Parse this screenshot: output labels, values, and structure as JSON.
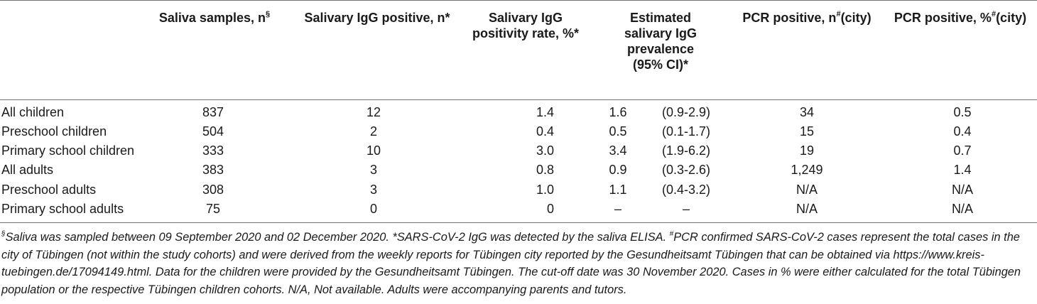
{
  "headers": {
    "saliva_samples": "Saliva samples, n",
    "saliva_samples_sup": "§",
    "igg_positive": "Salivary IgG positive, n*",
    "positivity_rate_line1": "Salivary IgG",
    "positivity_rate_line2": "positivity rate, %*",
    "prevalence_line1": "Estimated",
    "prevalence_line2": "salivary IgG",
    "prevalence_line3": "prevalence",
    "prevalence_line4": "(95% CI)*",
    "pcr_n_prefix": "PCR positive, n",
    "pcr_n_sup": "#",
    "pcr_n_suffix": "(city)",
    "pcr_pct_prefix": "PCR positive, %",
    "pcr_pct_sup": "#",
    "pcr_pct_suffix": "(city)"
  },
  "rows": [
    {
      "label": "All children",
      "samples": "837",
      "igg_pos": "12",
      "rate": "1.4",
      "prev": "1.6",
      "ci": "(0.9-2.9)",
      "pcr_n": "34",
      "pcr_pct": "0.5"
    },
    {
      "label": "Preschool children",
      "samples": "504",
      "igg_pos": "2",
      "rate": "0.4",
      "prev": "0.5",
      "ci": "(0.1-1.7)",
      "pcr_n": "15",
      "pcr_pct": "0.4"
    },
    {
      "label": "Primary school children",
      "samples": "333",
      "igg_pos": "10",
      "rate": "3.0",
      "prev": "3.4",
      "ci": "(1.9-6.2)",
      "pcr_n": "19",
      "pcr_pct": "0.7"
    },
    {
      "label": "All adults",
      "samples": "383",
      "igg_pos": "3",
      "rate": "0.8",
      "prev": "0.9",
      "ci": "(0.3-2.6)",
      "pcr_n": "1,249",
      "pcr_pct": "1.4"
    },
    {
      "label": "Preschool adults",
      "samples": "308",
      "igg_pos": "3",
      "rate": "1.0",
      "prev": "1.1",
      "ci": "(0.4-3.2)",
      "pcr_n": "N/A",
      "pcr_pct": "N/A"
    },
    {
      "label": "Primary school adults",
      "samples": "75",
      "igg_pos": "0",
      "rate": "0",
      "prev": "–",
      "ci": "–",
      "pcr_n": "N/A",
      "pcr_pct": "N/A"
    }
  ],
  "footnote": {
    "sup1": "§",
    "text1": "Saliva was sampled between 09 September 2020 and 02 December 2020. *SARS-CoV-2 IgG was detected by the saliva ELISA. ",
    "sup2": "#",
    "text2": "PCR confirmed SARS-CoV-2 cases represent the total cases in the city of Tübingen (not within the study cohorts) and were derived from the weekly reports for Tübingen city reported by the Gesundheitsamt Tübingen that can be obtained via https://www.kreis-tuebingen.de/17094149.html. Data for the children were provided by the Gesundheitsamt Tübingen. The cut-off date was 30 November 2020. Cases in % were either calculated for the total Tübingen population or the respective Tübingen children cohorts. N/A, Not available. Adults were accompanying parents and tutors."
  }
}
